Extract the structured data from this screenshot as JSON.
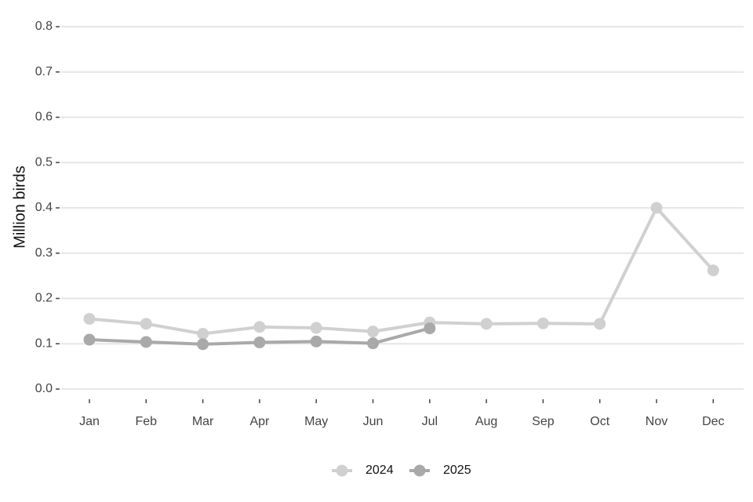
{
  "chart_data": {
    "type": "line",
    "title": "",
    "xlabel": "",
    "ylabel": "Million birds",
    "categories": [
      "Jan",
      "Feb",
      "Mar",
      "Apr",
      "May",
      "Jun",
      "Jul",
      "Aug",
      "Sep",
      "Oct",
      "Nov",
      "Dec"
    ],
    "ylim": [
      0,
      0.8
    ],
    "yticks": [
      "0.0",
      "0.1",
      "0.2",
      "0.3",
      "0.4",
      "0.5",
      "0.6",
      "0.7",
      "0.8"
    ],
    "grid": "horizontal",
    "legend_position": "bottom",
    "series": [
      {
        "name": "2024",
        "color": "#d0d0d0",
        "values": [
          0.155,
          0.144,
          0.122,
          0.137,
          0.135,
          0.127,
          0.147,
          0.144,
          0.145,
          0.144,
          0.4,
          0.262
        ]
      },
      {
        "name": "2025",
        "color": "#a9a9a9",
        "values": [
          0.109,
          0.104,
          0.099,
          0.103,
          0.105,
          0.101,
          0.134,
          null,
          null,
          null,
          null,
          null
        ]
      }
    ]
  }
}
